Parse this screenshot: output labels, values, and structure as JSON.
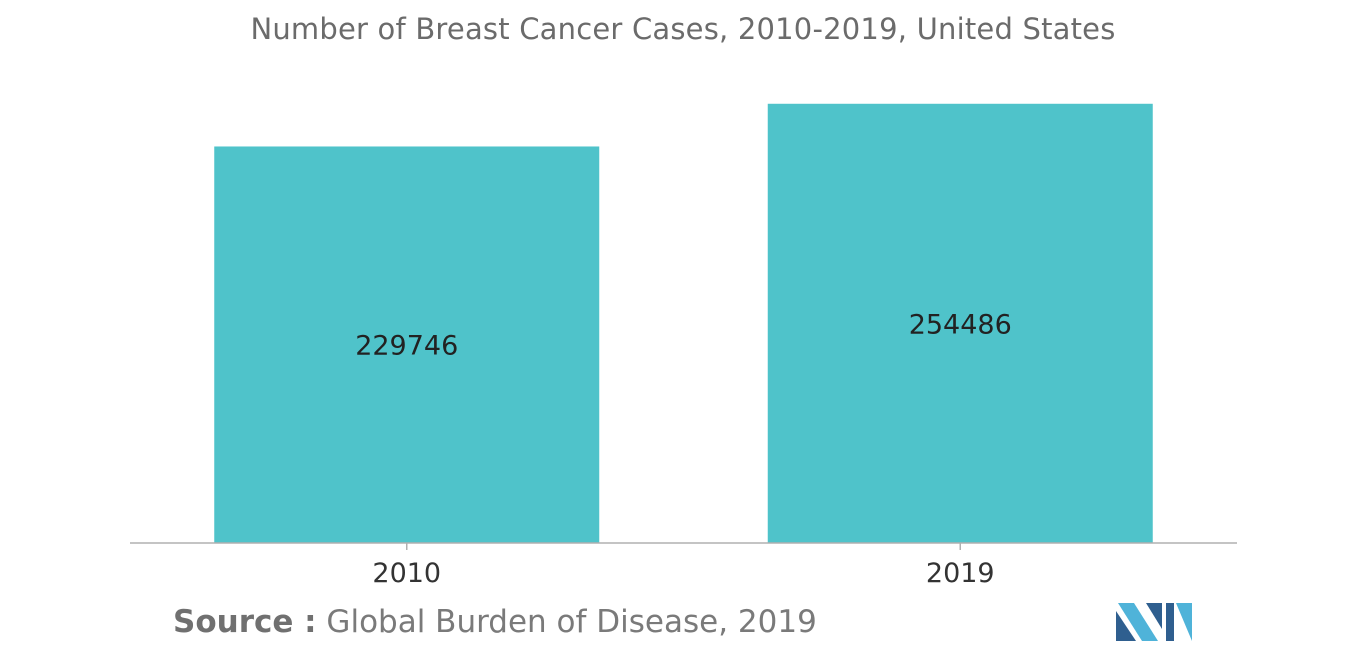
{
  "chart_data": {
    "type": "bar",
    "title": "Number of Breast Cancer Cases, 2010-2019, United States",
    "categories": [
      "2010",
      "2019"
    ],
    "values": [
      229746,
      254486
    ],
    "data_labels": [
      "229746",
      "254486"
    ],
    "xlabel": "",
    "ylabel": "",
    "ylim": [
      0,
      270000
    ],
    "grid": false,
    "legend": "none",
    "bar_color": "#4FC3CA",
    "axis_color": "#b0b0b0"
  },
  "source": {
    "label": "Source :",
    "text": " Global Burden of Disease, 2019"
  },
  "colors": {
    "title": "#6b6b6b",
    "logo_dark": "#2f5f8f",
    "logo_light": "#4fb3d9"
  }
}
